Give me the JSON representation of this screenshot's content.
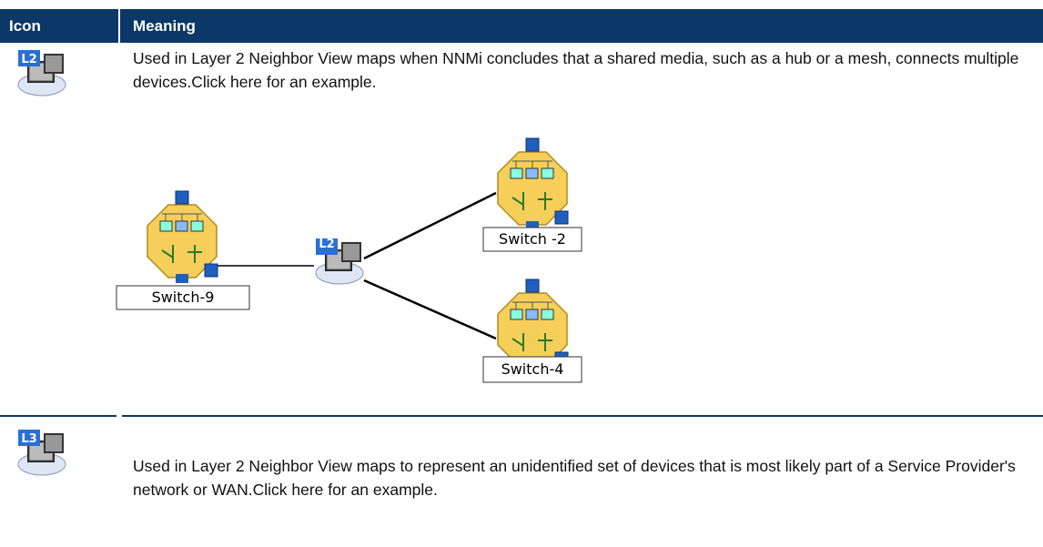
{
  "table": {
    "headers": [
      "Icon",
      "Meaning"
    ],
    "rows": [
      {
        "icon_label": "L2",
        "meaning": "Used in Layer 2 Neighbor View maps when NNMi concludes that a shared media, such as a hub or a mesh, connects multiple devices.Click here for an example.",
        "diagram": {
          "hub_label": "L2",
          "nodes": [
            "Switch-9",
            "Switch -2",
            "Switch-4"
          ]
        }
      },
      {
        "icon_label": "L3",
        "meaning": "Used in Layer 2 Neighbor View maps to represent an unidentified set of devices that is most likely part of a Service Provider's network or WAN.Click here for an example."
      }
    ]
  }
}
